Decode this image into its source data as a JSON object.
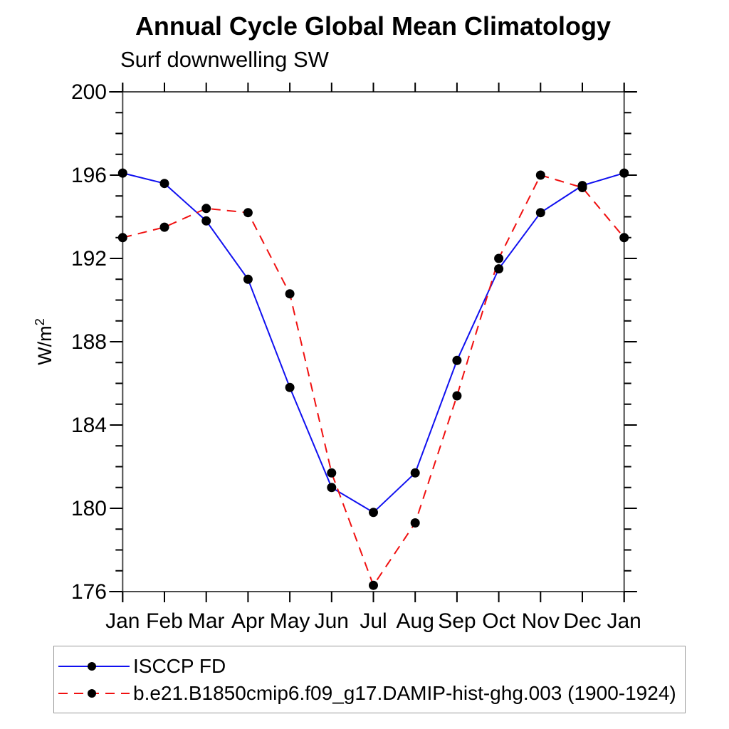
{
  "title": "Annual Cycle Global Mean Climatology",
  "subtitle": "Surf downwelling SW",
  "y_axis_title_base": "W/m",
  "y_axis_title_exponent": "2",
  "colors": {
    "series1_line": "#1010f0",
    "series2_line": "#f01010",
    "marker": "#000000",
    "frame": "#4a4a4a",
    "tick": "#000000",
    "text": "#000000",
    "legend_border": "#9a9a9a"
  },
  "chart_data": {
    "type": "line",
    "categories": [
      "Jan",
      "Feb",
      "Mar",
      "Apr",
      "May",
      "Jun",
      "Jul",
      "Aug",
      "Sep",
      "Oct",
      "Nov",
      "Dec",
      "Jan"
    ],
    "series": [
      {
        "name": "ISCCP FD",
        "style": "solid",
        "color_key": "series1_line",
        "marker": "filled-circle",
        "values": [
          196.1,
          195.6,
          193.8,
          191.0,
          185.8,
          181.0,
          179.8,
          181.7,
          187.1,
          191.5,
          194.2,
          195.5,
          196.1
        ]
      },
      {
        "name": "b.e21.B1850cmip6.f09_g17.DAMIP-hist-ghg.003 (1900-1924)",
        "style": "dashed",
        "color_key": "series2_line",
        "marker": "filled-circle",
        "values": [
          193.0,
          193.5,
          194.4,
          194.2,
          190.3,
          181.7,
          176.3,
          179.3,
          185.4,
          192.0,
          196.0,
          195.4,
          193.0
        ]
      }
    ],
    "ylim": [
      176,
      200
    ],
    "yticks_major": [
      176,
      180,
      184,
      188,
      192,
      196,
      200
    ],
    "ytick_minor_step": 1,
    "grid": false,
    "legend_position": "bottom"
  }
}
